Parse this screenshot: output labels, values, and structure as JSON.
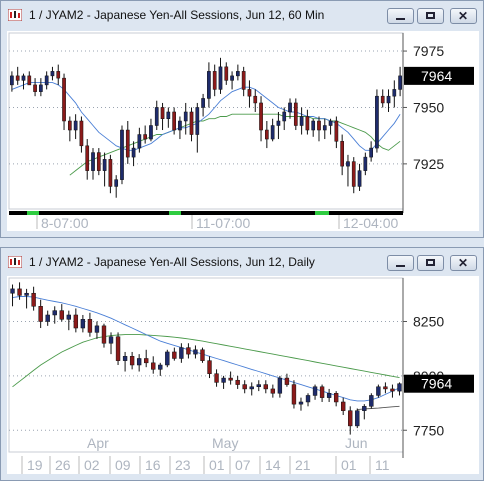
{
  "windows": [
    {
      "title": "1 / JYAM2 - Japanese Yen-All Sessions, Jun 12, 60 Min",
      "chart_data": {
        "type": "candlestick",
        "y_ticks": [
          7975,
          7950,
          7925
        ],
        "ylim": [
          7905,
          7983
        ],
        "last_price": "7964",
        "x_labels": [
          "8-07:00",
          "11-07:00",
          "12-04:00"
        ],
        "candles": [
          [
            7960,
            7966,
            7957,
            7964
          ],
          [
            7964,
            7968,
            7960,
            7962
          ],
          [
            7962,
            7965,
            7958,
            7964
          ],
          [
            7964,
            7966,
            7960,
            7960
          ],
          [
            7960,
            7963,
            7955,
            7957
          ],
          [
            7957,
            7963,
            7955,
            7960
          ],
          [
            7960,
            7966,
            7958,
            7964
          ],
          [
            7964,
            7968,
            7962,
            7966
          ],
          [
            7966,
            7969,
            7960,
            7963
          ],
          [
            7963,
            7965,
            7940,
            7944
          ],
          [
            7944,
            7946,
            7935,
            7940
          ],
          [
            7940,
            7947,
            7936,
            7944
          ],
          [
            7944,
            7946,
            7930,
            7933
          ],
          [
            7933,
            7936,
            7918,
            7922
          ],
          [
            7922,
            7932,
            7918,
            7930
          ],
          [
            7930,
            7932,
            7920,
            7922
          ],
          [
            7922,
            7930,
            7915,
            7927
          ],
          [
            7927,
            7929,
            7912,
            7915
          ],
          [
            7915,
            7920,
            7910,
            7918
          ],
          [
            7918,
            7942,
            7916,
            7940
          ],
          [
            7940,
            7944,
            7925,
            7928
          ],
          [
            7928,
            7935,
            7924,
            7932
          ],
          [
            7932,
            7941,
            7930,
            7938
          ],
          [
            7938,
            7942,
            7934,
            7936
          ],
          [
            7936,
            7945,
            7935,
            7942
          ],
          [
            7942,
            7953,
            7940,
            7950
          ],
          [
            7950,
            7952,
            7940,
            7945
          ],
          [
            7945,
            7950,
            7941,
            7948
          ],
          [
            7948,
            7950,
            7938,
            7940
          ],
          [
            7940,
            7946,
            7936,
            7944
          ],
          [
            7944,
            7952,
            7938,
            7948
          ],
          [
            7948,
            7950,
            7935,
            7938
          ],
          [
            7938,
            7952,
            7930,
            7950
          ],
          [
            7950,
            7956,
            7946,
            7954
          ],
          [
            7954,
            7970,
            7950,
            7966
          ],
          [
            7966,
            7969,
            7955,
            7958
          ],
          [
            7958,
            7972,
            7956,
            7968
          ],
          [
            7968,
            7970,
            7960,
            7962
          ],
          [
            7962,
            7966,
            7958,
            7964
          ],
          [
            7964,
            7969,
            7962,
            7966
          ],
          [
            7966,
            7968,
            7955,
            7958
          ],
          [
            7958,
            7962,
            7950,
            7955
          ],
          [
            7955,
            7958,
            7948,
            7952
          ],
          [
            7952,
            7955,
            7935,
            7940
          ],
          [
            7940,
            7944,
            7932,
            7936
          ],
          [
            7936,
            7945,
            7935,
            7942
          ],
          [
            7942,
            7948,
            7936,
            7944
          ],
          [
            7944,
            7950,
            7940,
            7948
          ],
          [
            7948,
            7954,
            7945,
            7952
          ],
          [
            7952,
            7954,
            7940,
            7942
          ],
          [
            7942,
            7950,
            7938,
            7946
          ],
          [
            7946,
            7949,
            7938,
            7940
          ],
          [
            7940,
            7945,
            7937,
            7944
          ],
          [
            7944,
            7946,
            7935,
            7940
          ],
          [
            7940,
            7945,
            7936,
            7942
          ],
          [
            7942,
            7945,
            7938,
            7944
          ],
          [
            7944,
            7946,
            7932,
            7935
          ],
          [
            7935,
            7938,
            7920,
            7924
          ],
          [
            7924,
            7929,
            7915,
            7926
          ],
          [
            7926,
            7928,
            7912,
            7915
          ],
          [
            7915,
            7925,
            7913,
            7922
          ],
          [
            7922,
            7930,
            7920,
            7928
          ],
          [
            7928,
            7935,
            7926,
            7932
          ],
          [
            7932,
            7958,
            7930,
            7955
          ],
          [
            7955,
            7958,
            7950,
            7952
          ],
          [
            7952,
            7958,
            7948,
            7955
          ],
          [
            7955,
            7962,
            7950,
            7958
          ],
          [
            7958,
            7968,
            7955,
            7964
          ]
        ],
        "ma_fast": [
          7958,
          7959,
          7960,
          7961,
          7961,
          7961,
          7961,
          7961,
          7960,
          7958,
          7955,
          7952,
          7948,
          7945,
          7942,
          7939,
          7937,
          7935,
          7933,
          7932,
          7931,
          7931,
          7932,
          7933,
          7934,
          7936,
          7938,
          7939,
          7940,
          7941,
          7941,
          7942,
          7943,
          7945,
          7947,
          7950,
          7953,
          7955,
          7957,
          7958,
          7959,
          7959,
          7958,
          7956,
          7954,
          7952,
          7950,
          7949,
          7948,
          7948,
          7947,
          7946,
          7946,
          7945,
          7945,
          7944,
          7943,
          7941,
          7939,
          7936,
          7933,
          7931,
          7931,
          7934,
          7937,
          7940,
          7943,
          7947
        ],
        "ma_slow": [
          null,
          null,
          null,
          null,
          null,
          null,
          null,
          null,
          null,
          null,
          7920,
          7922,
          7924,
          7926,
          7927,
          7928,
          7929,
          7930,
          7931,
          7932,
          7933,
          7934,
          7935,
          7936,
          7937,
          7938,
          7938,
          7939,
          7940,
          7941,
          7942,
          7943,
          7944,
          7944,
          7945,
          7945,
          7946,
          7946,
          7947,
          7947,
          7947,
          7947,
          7947,
          7947,
          7947,
          7947,
          7947,
          7946,
          7946,
          7946,
          7946,
          7946,
          7945,
          7945,
          7945,
          7944,
          7944,
          7943,
          7942,
          7941,
          7940,
          7939,
          7937,
          7934,
          7932,
          7931,
          7933,
          7935
        ],
        "session_bar": [
          [
            "#000",
            0,
            18
          ],
          [
            "#2ecc40",
            18,
            30
          ],
          [
            "#000",
            30,
            160
          ],
          [
            "#2ecc40",
            160,
            172
          ],
          [
            "#000",
            172,
            306
          ],
          [
            "#2ecc40",
            306,
            320
          ],
          [
            "#000",
            320,
            394
          ]
        ],
        "colors": {
          "up": "#1e2b6b",
          "down": "#8b1a1a",
          "ma_fast": "#4a7fd6",
          "ma_slow": "#4b9a4b",
          "grid": "#9aa3b0"
        }
      }
    },
    {
      "title": "1 / JYAM2 - Japanese Yen-All Sessions, Jun 12, Daily",
      "chart_data": {
        "type": "candlestick",
        "y_ticks": [
          8250,
          8000,
          7750
        ],
        "ylim": [
          7650,
          8450
        ],
        "last_price": "7964",
        "x_month_labels": [
          "Apr",
          "May",
          "Jun"
        ],
        "x_day_labels": [
          "19",
          "26",
          "02",
          "09",
          "16",
          "23",
          "01",
          "07",
          "14",
          "21",
          "01",
          "11"
        ],
        "candles": [
          [
            8380,
            8420,
            8320,
            8400
          ],
          [
            8400,
            8430,
            8350,
            8370
          ],
          [
            8370,
            8400,
            8310,
            8380
          ],
          [
            8380,
            8410,
            8300,
            8320
          ],
          [
            8320,
            8350,
            8220,
            8250
          ],
          [
            8250,
            8300,
            8230,
            8280
          ],
          [
            8280,
            8320,
            8240,
            8300
          ],
          [
            8300,
            8330,
            8250,
            8260
          ],
          [
            8260,
            8300,
            8210,
            8280
          ],
          [
            8280,
            8310,
            8200,
            8220
          ],
          [
            8220,
            8280,
            8200,
            8260
          ],
          [
            8260,
            8290,
            8180,
            8200
          ],
          [
            8200,
            8250,
            8170,
            8230
          ],
          [
            8230,
            8240,
            8130,
            8150
          ],
          [
            8150,
            8200,
            8100,
            8180
          ],
          [
            8180,
            8200,
            8050,
            8070
          ],
          [
            8070,
            8110,
            8020,
            8090
          ],
          [
            8090,
            8110,
            8030,
            8050
          ],
          [
            8050,
            8100,
            8020,
            8080
          ],
          [
            8080,
            8120,
            8040,
            8060
          ],
          [
            8060,
            8090,
            8010,
            8030
          ],
          [
            8030,
            8060,
            8000,
            8050
          ],
          [
            8050,
            8120,
            8040,
            8110
          ],
          [
            8110,
            8130,
            8070,
            8080
          ],
          [
            8080,
            8150,
            8060,
            8130
          ],
          [
            8130,
            8150,
            8080,
            8100
          ],
          [
            8100,
            8140,
            8080,
            8120
          ],
          [
            8120,
            8130,
            8060,
            8070
          ],
          [
            8070,
            8090,
            7990,
            8010
          ],
          [
            8010,
            8030,
            7950,
            7970
          ],
          [
            7970,
            8000,
            7940,
            7990
          ],
          [
            7990,
            8020,
            7960,
            7980
          ],
          [
            7980,
            8000,
            7940,
            7960
          ],
          [
            7960,
            7980,
            7920,
            7940
          ],
          [
            7940,
            7970,
            7910,
            7950
          ],
          [
            7950,
            7980,
            7930,
            7960
          ],
          [
            7960,
            7980,
            7920,
            7940
          ],
          [
            7940,
            7960,
            7900,
            7920
          ],
          [
            7920,
            8000,
            7900,
            7990
          ],
          [
            7990,
            8010,
            7950,
            7960
          ],
          [
            7960,
            7980,
            7850,
            7870
          ],
          [
            7870,
            7900,
            7840,
            7880
          ],
          [
            7880,
            7920,
            7860,
            7910
          ],
          [
            7910,
            7960,
            7890,
            7950
          ],
          [
            7950,
            7960,
            7880,
            7900
          ],
          [
            7900,
            7940,
            7880,
            7920
          ],
          [
            7920,
            7930,
            7860,
            7880
          ],
          [
            7880,
            7900,
            7820,
            7840
          ],
          [
            7840,
            7860,
            7730,
            7770
          ],
          [
            7770,
            7850,
            7760,
            7840
          ],
          [
            7840,
            7870,
            7800,
            7860
          ],
          [
            7860,
            7920,
            7850,
            7910
          ],
          [
            7910,
            7960,
            7900,
            7950
          ],
          [
            7950,
            7970,
            7920,
            7940
          ],
          [
            7940,
            7960,
            7900,
            7930
          ],
          [
            7930,
            7970,
            7910,
            7964
          ]
        ],
        "ma_fast": [
          8360,
          8365,
          8365,
          8362,
          8355,
          8348,
          8342,
          8336,
          8328,
          8320,
          8310,
          8300,
          8290,
          8278,
          8265,
          8250,
          8235,
          8220,
          8205,
          8190,
          8175,
          8160,
          8150,
          8140,
          8130,
          8120,
          8110,
          8100,
          8090,
          8080,
          8070,
          8060,
          8050,
          8040,
          8030,
          8020,
          8010,
          8000,
          7990,
          7980,
          7970,
          7960,
          7950,
          7940,
          7930,
          7920,
          7910,
          7900,
          7890,
          7885,
          7885,
          7890,
          7900,
          7915,
          7930,
          7945
        ],
        "ma_slow": [
          7950,
          7975,
          8000,
          8025,
          8050,
          8070,
          8090,
          8110,
          8125,
          8140,
          8155,
          8165,
          8175,
          8180,
          8185,
          8188,
          8190,
          8190,
          8190,
          8188,
          8186,
          8184,
          8181,
          8178,
          8174,
          8170,
          8165,
          8160,
          8154,
          8148,
          8142,
          8136,
          8130,
          8124,
          8118,
          8112,
          8106,
          8100,
          8094,
          8088,
          8082,
          8076,
          8070,
          8064,
          8058,
          8052,
          8046,
          8040,
          8034,
          8028,
          8022,
          8016,
          8010,
          8004,
          7998,
          7992
        ],
        "ma_base": [
          null,
          null,
          null,
          null,
          null,
          null,
          null,
          null,
          null,
          null,
          null,
          null,
          null,
          null,
          null,
          null,
          null,
          null,
          null,
          null,
          null,
          null,
          null,
          null,
          null,
          null,
          null,
          null,
          null,
          null,
          null,
          null,
          null,
          null,
          null,
          null,
          null,
          null,
          null,
          null,
          null,
          null,
          null,
          null,
          null,
          null,
          null,
          null,
          null,
          7845,
          7848,
          7850,
          7852,
          7855,
          7858,
          7860
        ],
        "colors": {
          "up": "#1e2b6b",
          "down": "#8b1a1a",
          "ma_fast": "#4a7fd6",
          "ma_slow": "#4b9a4b",
          "grid": "#9aa3b0"
        }
      }
    }
  ]
}
